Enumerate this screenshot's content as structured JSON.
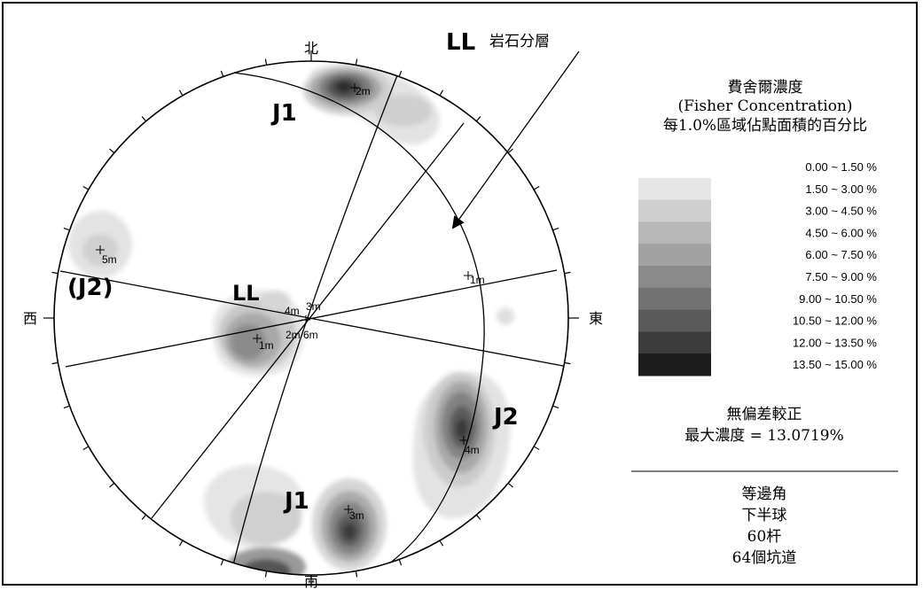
{
  "compass": {
    "north": "北",
    "south": "南",
    "east": "東",
    "west": "西"
  },
  "set_labels": {
    "j1_top": "J1",
    "j1_bottom": "J1",
    "j2": "J2",
    "j2_paren": "(J2)",
    "ll_center": "LL"
  },
  "bedding_legend": {
    "code": "LL",
    "text": "岩石分層"
  },
  "pole_labels": [
    "2m",
    "5m",
    "4m",
    "3m",
    "2m",
    "6m",
    "1m",
    "1m",
    "4m",
    "3m"
  ],
  "legend": {
    "title": "費舍爾濃度",
    "subtitle": "(Fisher Concentration)",
    "caption": "每1.0%區域佔點面積的百分比",
    "bins": [
      {
        "range": "0.00 ~ 1.50 %",
        "color": "#ffffff"
      },
      {
        "range": "1.50 ~ 3.00 %",
        "color": "#e6e6e6"
      },
      {
        "range": "3.00 ~ 4.50 %",
        "color": "#cfcfcf"
      },
      {
        "range": "4.50 ~ 6.00 %",
        "color": "#b8b8b8"
      },
      {
        "range": "6.00 ~ 7.50 %",
        "color": "#a2a2a2"
      },
      {
        "range": "7.50 ~ 9.00 %",
        "color": "#8a8a8a"
      },
      {
        "range": "9.00 ~ 10.50 %",
        "color": "#727272"
      },
      {
        "range": "10.50 ~ 12.00 %",
        "color": "#5a5a5a"
      },
      {
        "range": "12.00 ~ 13.50 %",
        "color": "#3c3c3c"
      },
      {
        "range": "13.50 ~ 15.00 %",
        "color": "#1c1c1c"
      }
    ]
  },
  "stats": {
    "method": "無偏差較正",
    "max_density": "最大濃度 = 13.0719%"
  },
  "projection": {
    "type": "等邊角",
    "hemisphere": "下半球",
    "poles": "60杆",
    "tunnels": "64個坑道"
  }
}
